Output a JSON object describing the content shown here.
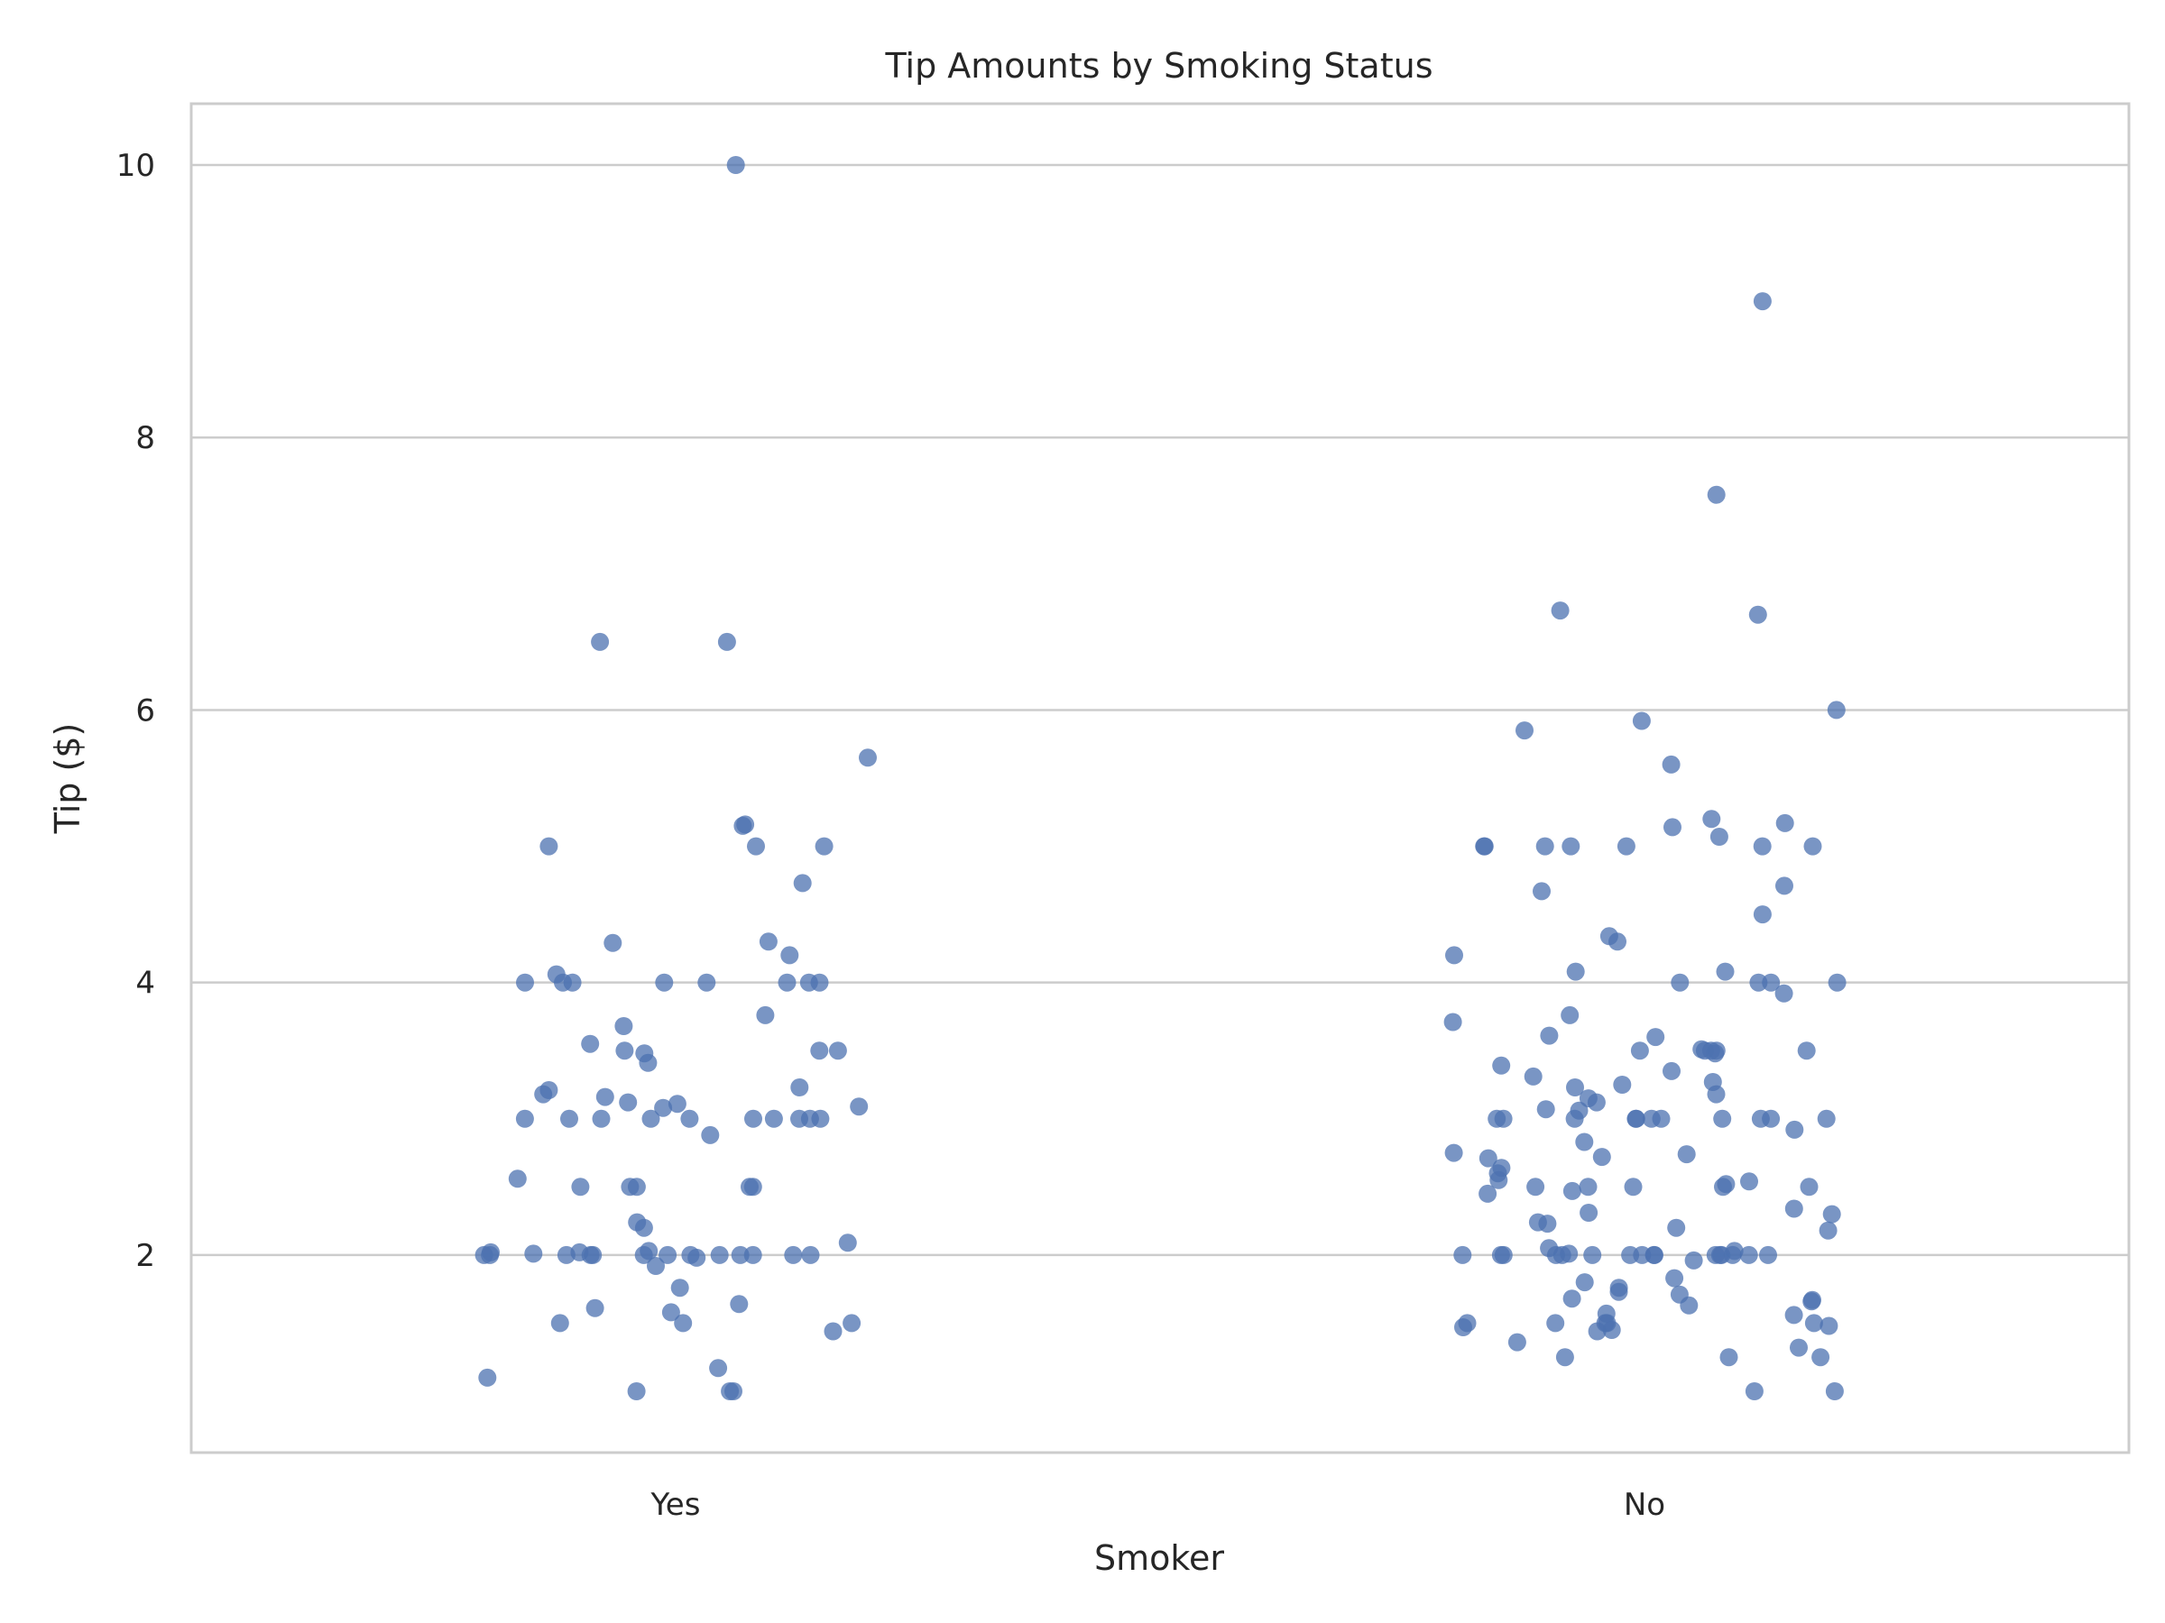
{
  "chart_data": {
    "type": "scatter",
    "subtype": "strip",
    "title": "Tip Amounts by Smoking Status",
    "xlabel": "Smoker",
    "ylabel": "Tip ($)",
    "categories": [
      "Yes",
      "No"
    ],
    "ylim": [
      0.55,
      10.45
    ],
    "yticks": [
      2,
      4,
      6,
      8,
      10
    ],
    "grid": "horizontal",
    "point_color": "#4c72b0",
    "point_opacity": 0.75,
    "series": [
      {
        "category": "Yes",
        "values": [
          10.0,
          6.5,
          6.5,
          5.65,
          5.16,
          5.15,
          5.0,
          5.0,
          5.0,
          4.73,
          4.3,
          4.29,
          4.2,
          4.06,
          4.0,
          4.0,
          4.0,
          4.0,
          4.0,
          4.0,
          4.0,
          4.0,
          3.76,
          3.68,
          3.55,
          3.5,
          3.5,
          3.5,
          3.48,
          3.41,
          3.23,
          3.21,
          3.18,
          3.16,
          3.12,
          3.11,
          3.09,
          3.08,
          3.0,
          3.0,
          3.0,
          3.0,
          3.0,
          3.0,
          3.0,
          3.0,
          3.0,
          3.0,
          2.88,
          2.56,
          2.5,
          2.5,
          2.5,
          2.5,
          2.5,
          2.24,
          2.2,
          2.09,
          2.03,
          2.02,
          2.02,
          2.01,
          2.0,
          2.0,
          2.0,
          2.0,
          2.0,
          2.0,
          2.0,
          2.0,
          2.0,
          2.0,
          2.0,
          2.0,
          2.0,
          1.98,
          1.92,
          1.76,
          1.64,
          1.61,
          1.58,
          1.5,
          1.5,
          1.5,
          1.44,
          1.17,
          1.1,
          1.0,
          1.0,
          1.0
        ]
      },
      {
        "category": "No",
        "values": [
          9.0,
          7.58,
          6.73,
          6.7,
          6.0,
          5.92,
          5.85,
          5.6,
          5.2,
          5.17,
          5.14,
          5.07,
          5.0,
          5.0,
          5.0,
          5.0,
          5.0,
          5.0,
          5.0,
          4.71,
          4.67,
          4.5,
          4.34,
          4.3,
          4.2,
          4.08,
          4.08,
          4.0,
          4.0,
          4.0,
          4.0,
          3.92,
          3.76,
          3.71,
          3.61,
          3.6,
          3.51,
          3.5,
          3.5,
          3.5,
          3.5,
          3.5,
          3.48,
          3.39,
          3.35,
          3.31,
          3.27,
          3.25,
          3.23,
          3.18,
          3.15,
          3.12,
          3.07,
          3.06,
          3.0,
          3.0,
          3.0,
          3.0,
          3.0,
          3.0,
          3.0,
          3.0,
          3.0,
          3.0,
          3.0,
          2.92,
          2.83,
          2.75,
          2.74,
          2.72,
          2.71,
          2.64,
          2.6,
          2.55,
          2.54,
          2.52,
          2.5,
          2.5,
          2.5,
          2.5,
          2.5,
          2.47,
          2.45,
          2.34,
          2.31,
          2.3,
          2.24,
          2.23,
          2.2,
          2.18,
          2.05,
          2.03,
          2.01,
          2.0,
          2.0,
          2.0,
          2.0,
          2.0,
          2.0,
          2.0,
          2.0,
          2.0,
          2.0,
          2.0,
          2.0,
          2.0,
          2.0,
          2.0,
          2.0,
          1.96,
          1.83,
          1.8,
          1.76,
          1.73,
          1.71,
          1.68,
          1.67,
          1.66,
          1.63,
          1.57,
          1.56,
          1.5,
          1.5,
          1.5,
          1.5,
          1.5,
          1.48,
          1.47,
          1.45,
          1.44,
          1.36,
          1.32,
          1.25,
          1.25,
          1.25,
          1.0,
          1.0
        ]
      }
    ]
  }
}
